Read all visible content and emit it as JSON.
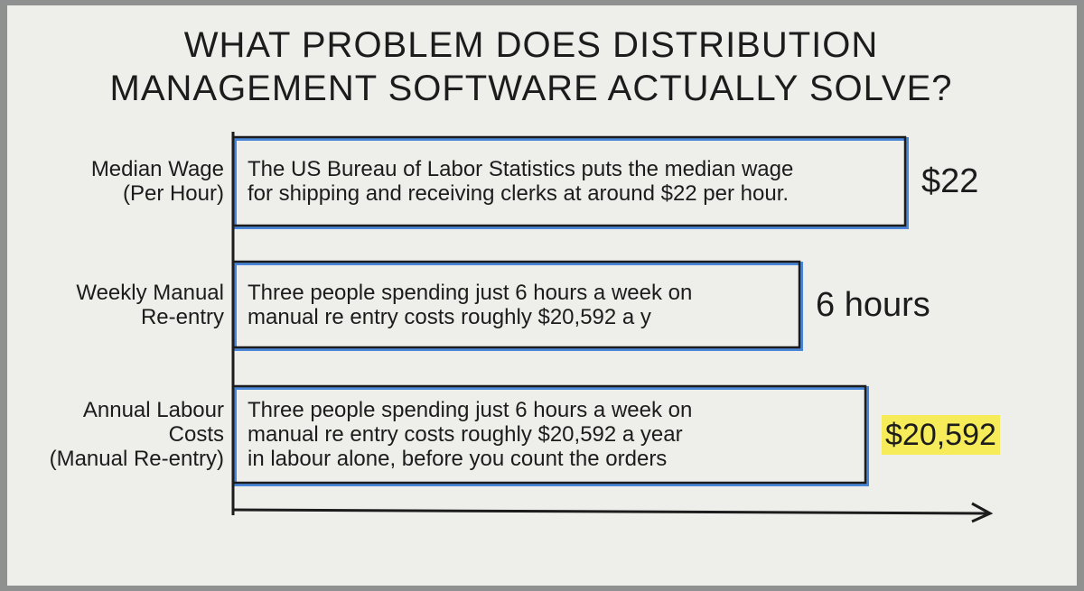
{
  "title": [
    "WHAT PROBLEM DOES DISTRIBUTION",
    "MANAGEMENT SOFTWARE ACTUALLY SOLVE?"
  ],
  "rows": [
    {
      "label": [
        "Median Wage",
        "(Per Hour)"
      ],
      "text": [
        "The US Bureau of Labor Statistics puts the median wage",
        "for shipping and receiving clerks at around $22 per hour."
      ],
      "value": "$22"
    },
    {
      "label": [
        "Weekly Manual",
        "Re-entry"
      ],
      "text": [
        "Three people spending just 6 hours a week on",
        "manual re entry costs roughly $20,592 a y"
      ],
      "value": "6 hours"
    },
    {
      "label": [
        "Annual Labour",
        "Costs",
        "(Manual Re-entry)"
      ],
      "text": [
        "Three people spending just 6 hours a week on",
        "manual re entry costs roughly $20,592 a year",
        "in labour alone, before you count the orders"
      ],
      "value": "$20,592"
    }
  ]
}
